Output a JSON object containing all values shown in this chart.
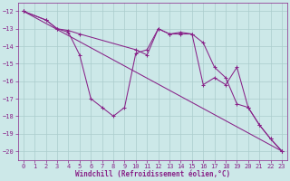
{
  "xlabel": "Windchill (Refroidissement éolien,°C)",
  "bg_color": "#cce8e8",
  "line_color": "#882288",
  "grid_color": "#aacccc",
  "xlim": [
    -0.5,
    23.5
  ],
  "ylim": [
    -20.5,
    -11.5
  ],
  "yticks": [
    -20,
    -19,
    -18,
    -17,
    -16,
    -15,
    -14,
    -13,
    -12
  ],
  "xticks": [
    0,
    1,
    2,
    3,
    4,
    5,
    6,
    7,
    8,
    9,
    10,
    11,
    12,
    13,
    14,
    15,
    16,
    17,
    18,
    19,
    20,
    21,
    22,
    23
  ],
  "series": [
    {
      "x": [
        0,
        23
      ],
      "y": [
        -12.0,
        -20.0
      ]
    },
    {
      "x": [
        0,
        2,
        3,
        4,
        5,
        6,
        7,
        8,
        9,
        10,
        11,
        12,
        13,
        14,
        15,
        16,
        17,
        18,
        19,
        20,
        21,
        22,
        23
      ],
      "y": [
        -12.0,
        -12.5,
        -13.0,
        -13.2,
        -14.5,
        -17.0,
        -17.5,
        -18.0,
        -17.5,
        -14.4,
        -14.2,
        -13.0,
        -13.3,
        -13.2,
        -13.3,
        -16.2,
        -15.8,
        -16.2,
        -15.2,
        -17.5,
        -18.5,
        -19.3,
        -20.0
      ]
    },
    {
      "x": [
        0,
        2,
        3,
        4,
        5,
        10,
        11,
        12,
        13,
        14,
        15,
        16,
        17,
        18,
        19,
        20,
        21,
        22,
        23
      ],
      "y": [
        -12.0,
        -12.5,
        -13.0,
        -13.1,
        -13.3,
        -14.2,
        -14.5,
        -13.0,
        -13.3,
        -13.3,
        -13.3,
        -13.8,
        -15.2,
        -15.8,
        -17.3,
        -17.5,
        -18.5,
        -19.3,
        -20.0
      ]
    }
  ]
}
